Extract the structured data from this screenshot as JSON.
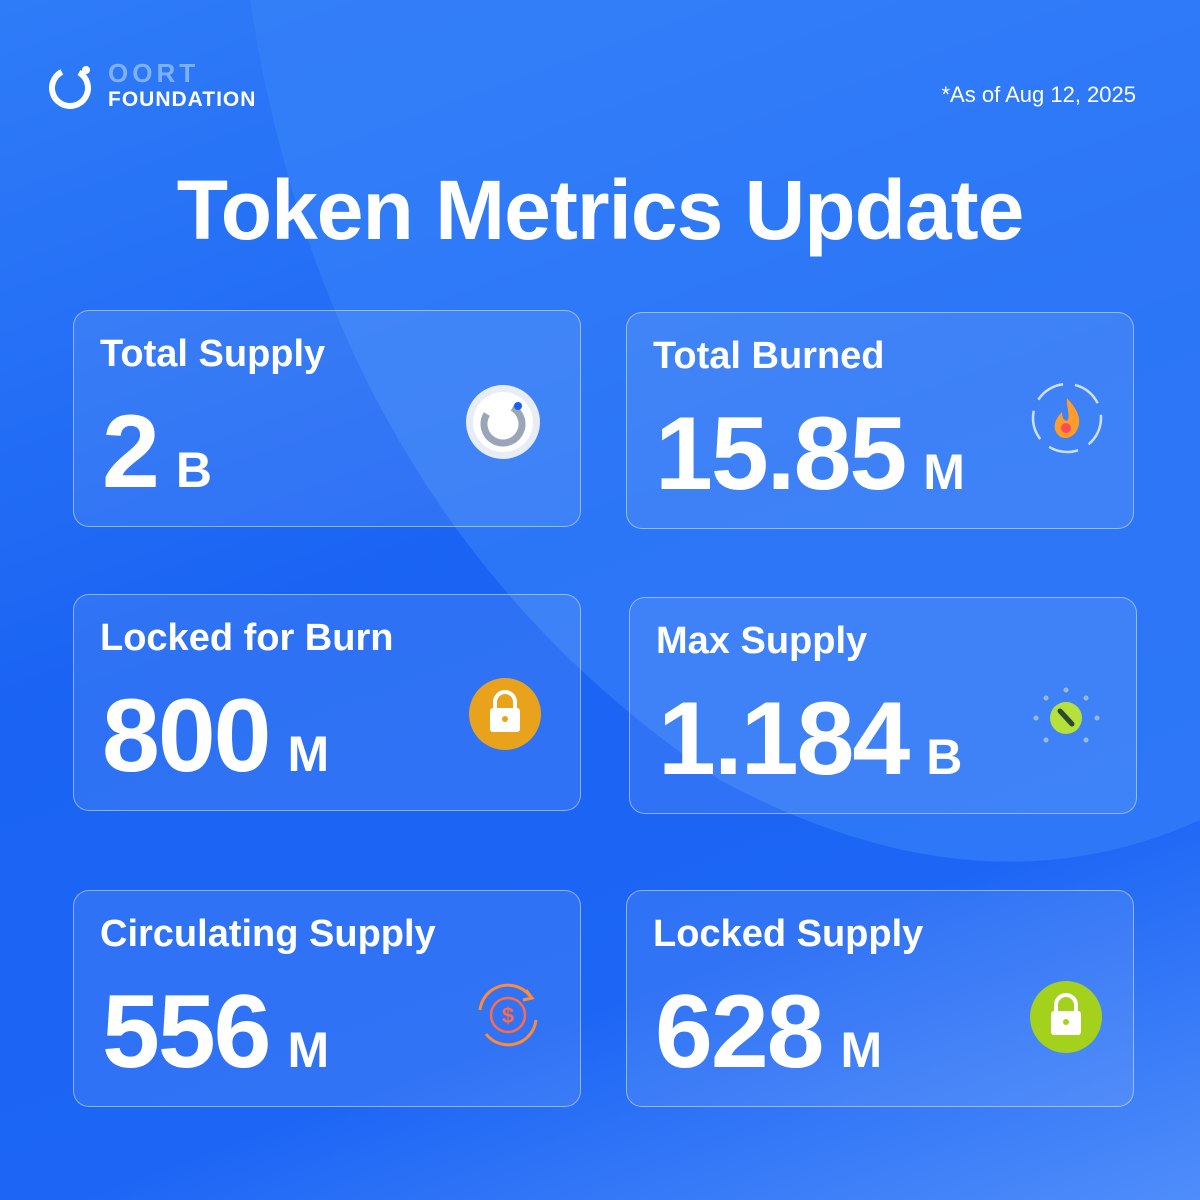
{
  "header": {
    "logo_top": "OORT",
    "logo_bottom": "FOUNDATION",
    "date": "*As of Aug 12, 2025",
    "title": "Token Metrics Update"
  },
  "cards": [
    {
      "label": "Total Supply",
      "value": "2",
      "unit": "B"
    },
    {
      "label": "Total Burned",
      "value": "15.85",
      "unit": "M"
    },
    {
      "label": "Locked for Burn",
      "value": "800",
      "unit": "M"
    },
    {
      "label": "Max Supply",
      "value": "1.184",
      "unit": "B"
    },
    {
      "label": "Circulating Supply",
      "value": "556",
      "unit": "M"
    },
    {
      "label": "Locked Supply",
      "value": "628",
      "unit": "M"
    }
  ]
}
